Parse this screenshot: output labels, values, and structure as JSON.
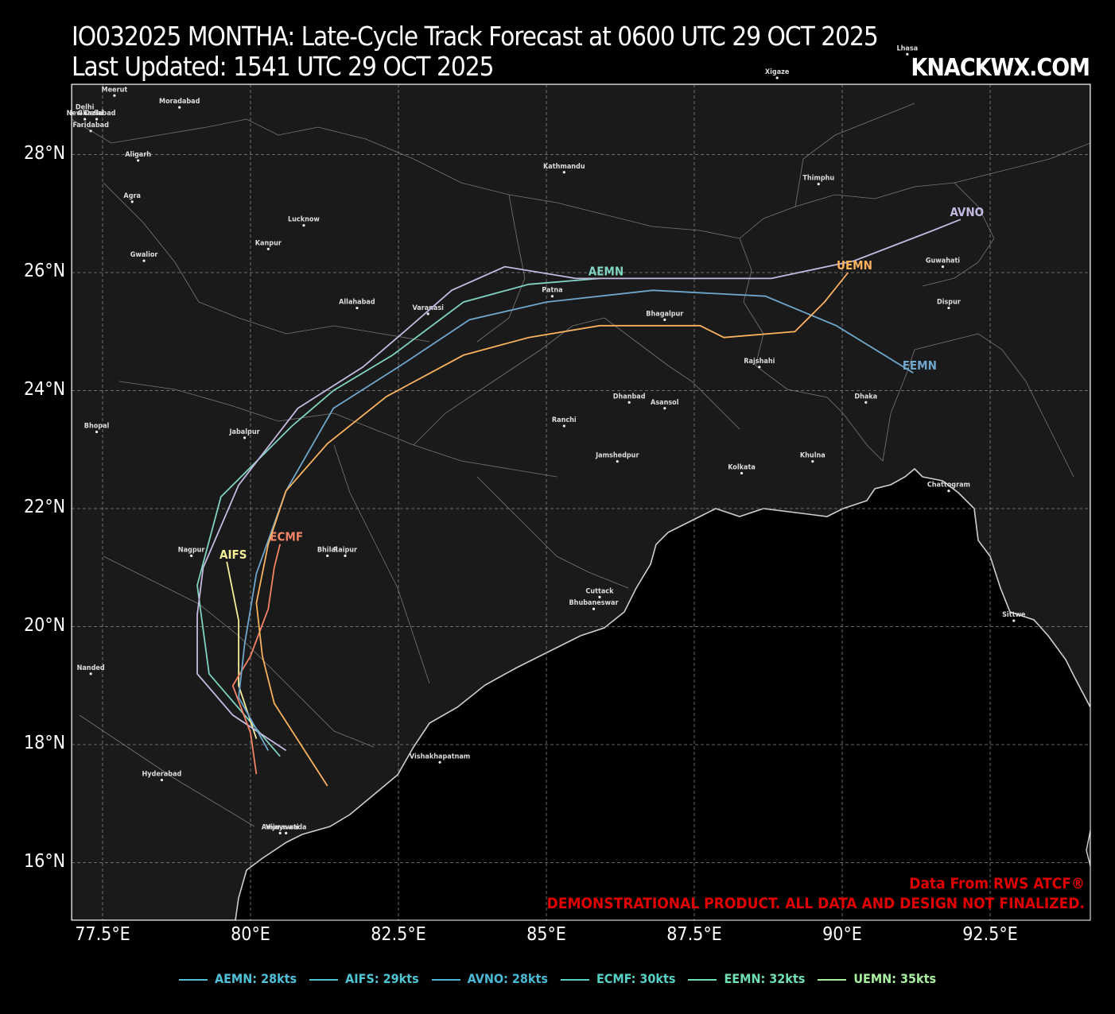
{
  "title": {
    "line1": "IO032025 MONTHA: Late-Cycle Track Forecast at 0600 UTC 29 OCT 2025",
    "line2": "Last Updated: 1541 UTC 29 OCT 2025",
    "brand": "KNACKWX.COM"
  },
  "axes": {
    "lat_labels": [
      "28°N",
      "26°N",
      "24°N",
      "22°N",
      "20°N",
      "18°N",
      "16°N"
    ],
    "lon_labels": [
      "77.5°E",
      "80°E",
      "82.5°E",
      "85°E",
      "87.5°E",
      "90°E",
      "92.5°E"
    ],
    "grid": true
  },
  "credits": {
    "line1": "Data From RWS ATCF®",
    "line2": "DEMONSTRATIONAL PRODUCT. ALL DATA AND DESIGN NOT FINALIZED."
  },
  "colors": {
    "land": "#1a1a1a",
    "ocean": "#000000",
    "coast": "#cfcfcf",
    "AEMN": "#7fd3c0",
    "AIFS": "#f5ef9a",
    "AVNO": "#c4b9e0",
    "ECMF": "#f48467",
    "EEMN": "#6ea6cc",
    "UEMN": "#f8b15e",
    "credit": "#e10000"
  },
  "legend": [
    {
      "label": "AEMN: 28kts",
      "color": "#4fc0d8"
    },
    {
      "label": "AIFS: 29kts",
      "color": "#4ec4d2"
    },
    {
      "label": "AVNO: 28kts",
      "color": "#49b8d4"
    },
    {
      "label": "ECMF: 30kts",
      "color": "#55d0c4"
    },
    {
      "label": "EEMN: 32kts",
      "color": "#6fe0b4"
    },
    {
      "label": "UEMN: 35kts",
      "color": "#a8f0a0"
    }
  ],
  "tracks": [
    {
      "model": "AEMN",
      "end_label": "AEMN",
      "points": [
        [
          80.5,
          17.8
        ],
        [
          79.3,
          19.2
        ],
        [
          79.1,
          20.7
        ],
        [
          79.5,
          22.2
        ],
        [
          80.7,
          23.4
        ],
        [
          81.4,
          24.0
        ],
        [
          82.4,
          24.6
        ],
        [
          83.6,
          25.5
        ],
        [
          84.7,
          25.8
        ],
        [
          85.9,
          25.9
        ]
      ]
    },
    {
      "model": "AIFS",
      "end_label": "AIFS",
      "points": [
        [
          80.1,
          18.1
        ],
        [
          79.8,
          19.0
        ],
        [
          79.8,
          20.1
        ],
        [
          79.6,
          21.1
        ]
      ]
    },
    {
      "model": "AVNO",
      "end_label": "AVNO",
      "points": [
        [
          80.6,
          17.9
        ],
        [
          79.7,
          18.5
        ],
        [
          79.1,
          19.2
        ],
        [
          79.1,
          20.2
        ],
        [
          79.2,
          21.0
        ],
        [
          79.8,
          22.4
        ],
        [
          80.8,
          23.7
        ],
        [
          81.9,
          24.4
        ],
        [
          82.6,
          25.0
        ],
        [
          83.4,
          25.7
        ],
        [
          84.3,
          26.1
        ],
        [
          85.5,
          25.9
        ],
        [
          87.5,
          25.9
        ],
        [
          88.8,
          25.9
        ],
        [
          90.2,
          26.2
        ],
        [
          91.5,
          26.7
        ],
        [
          92.0,
          26.9
        ]
      ]
    },
    {
      "model": "ECMF",
      "end_label": "ECMF",
      "points": [
        [
          80.1,
          17.5
        ],
        [
          80.0,
          18.2
        ],
        [
          79.7,
          19.0
        ],
        [
          80.0,
          19.5
        ],
        [
          80.3,
          20.3
        ],
        [
          80.4,
          21.0
        ],
        [
          80.5,
          21.4
        ]
      ]
    },
    {
      "model": "EEMN",
      "end_label": "EEMN",
      "points": [
        [
          80.3,
          17.9
        ],
        [
          79.8,
          18.8
        ],
        [
          79.9,
          19.7
        ],
        [
          80.1,
          20.9
        ],
        [
          80.6,
          22.3
        ],
        [
          81.4,
          23.7
        ],
        [
          82.5,
          24.4
        ],
        [
          83.7,
          25.2
        ],
        [
          85.0,
          25.5
        ],
        [
          86.8,
          25.7
        ],
        [
          88.7,
          25.6
        ],
        [
          89.9,
          25.1
        ],
        [
          91.2,
          24.3
        ]
      ]
    },
    {
      "model": "UEMN",
      "end_label": "UEMN",
      "points": [
        [
          81.3,
          17.3
        ],
        [
          80.4,
          18.7
        ],
        [
          80.2,
          19.5
        ],
        [
          80.1,
          20.4
        ],
        [
          80.3,
          21.4
        ],
        [
          80.6,
          22.3
        ],
        [
          81.3,
          23.1
        ],
        [
          82.3,
          23.9
        ],
        [
          83.6,
          24.6
        ],
        [
          84.7,
          24.9
        ],
        [
          85.9,
          25.1
        ],
        [
          87.6,
          25.1
        ],
        [
          88.0,
          24.9
        ],
        [
          89.2,
          25.0
        ],
        [
          89.7,
          25.5
        ],
        [
          90.1,
          26.0
        ]
      ]
    }
  ],
  "cities": [
    {
      "name": "Lhasa",
      "lon": 91.1,
      "lat": 29.7
    },
    {
      "name": "Xigaze",
      "lon": 88.9,
      "lat": 29.3
    },
    {
      "name": "Meerut",
      "lon": 77.7,
      "lat": 29.0
    },
    {
      "name": "Delhi",
      "lon": 77.2,
      "lat": 28.7
    },
    {
      "name": "Moradabad",
      "lon": 78.8,
      "lat": 28.8
    },
    {
      "name": "Ghaziabad",
      "lon": 77.4,
      "lat": 28.6
    },
    {
      "name": "New Delhi",
      "lon": 77.2,
      "lat": 28.6
    },
    {
      "name": "Faridabad",
      "lon": 77.3,
      "lat": 28.4
    },
    {
      "name": "Aligarh",
      "lon": 78.1,
      "lat": 27.9
    },
    {
      "name": "Kathmandu",
      "lon": 85.3,
      "lat": 27.7
    },
    {
      "name": "Thimphu",
      "lon": 89.6,
      "lat": 27.5
    },
    {
      "name": "Agra",
      "lon": 78.0,
      "lat": 27.2
    },
    {
      "name": "Lucknow",
      "lon": 80.9,
      "lat": 26.8
    },
    {
      "name": "Guwahati",
      "lon": 91.7,
      "lat": 26.1
    },
    {
      "name": "Kanpur",
      "lon": 80.3,
      "lat": 26.4
    },
    {
      "name": "Gwalior",
      "lon": 78.2,
      "lat": 26.2
    },
    {
      "name": "Patna",
      "lon": 85.1,
      "lat": 25.6
    },
    {
      "name": "Allahabad",
      "lon": 81.8,
      "lat": 25.4
    },
    {
      "name": "Dispur",
      "lon": 91.8,
      "lat": 25.4
    },
    {
      "name": "Varanasi",
      "lon": 83.0,
      "lat": 25.3
    },
    {
      "name": "Bhagalpur",
      "lon": 87.0,
      "lat": 25.2
    },
    {
      "name": "Rajshahi",
      "lon": 88.6,
      "lat": 24.4
    },
    {
      "name": "Dhanbad",
      "lon": 86.4,
      "lat": 23.8
    },
    {
      "name": "Dhaka",
      "lon": 90.4,
      "lat": 23.8
    },
    {
      "name": "Asansol",
      "lon": 87.0,
      "lat": 23.7
    },
    {
      "name": "Ranchi",
      "lon": 85.3,
      "lat": 23.4
    },
    {
      "name": "Bhopal",
      "lon": 77.4,
      "lat": 23.3
    },
    {
      "name": "Jabalpur",
      "lon": 79.9,
      "lat": 23.2
    },
    {
      "name": "Khulna",
      "lon": 89.5,
      "lat": 22.8
    },
    {
      "name": "Jamshedpur",
      "lon": 86.2,
      "lat": 22.8
    },
    {
      "name": "Kolkata",
      "lon": 88.3,
      "lat": 22.6
    },
    {
      "name": "Chattogram",
      "lon": 91.8,
      "lat": 22.3
    },
    {
      "name": "Nagpur",
      "lon": 79.0,
      "lat": 21.2
    },
    {
      "name": "Bhilai",
      "lon": 81.3,
      "lat": 21.2
    },
    {
      "name": "Raipur",
      "lon": 81.6,
      "lat": 21.2
    },
    {
      "name": "Cuttack",
      "lon": 85.9,
      "lat": 20.5
    },
    {
      "name": "Bhubaneswar",
      "lon": 85.8,
      "lat": 20.3
    },
    {
      "name": "Sittwe",
      "lon": 92.9,
      "lat": 20.1
    },
    {
      "name": "Nanded",
      "lon": 77.3,
      "lat": 19.2
    },
    {
      "name": "Vishakhapatnam",
      "lon": 83.2,
      "lat": 17.7
    },
    {
      "name": "Hyderabad",
      "lon": 78.5,
      "lat": 17.4
    },
    {
      "name": "Amaravati",
      "lon": 80.5,
      "lat": 16.5
    },
    {
      "name": "Vijayawada",
      "lon": 80.6,
      "lat": 16.5
    }
  ]
}
